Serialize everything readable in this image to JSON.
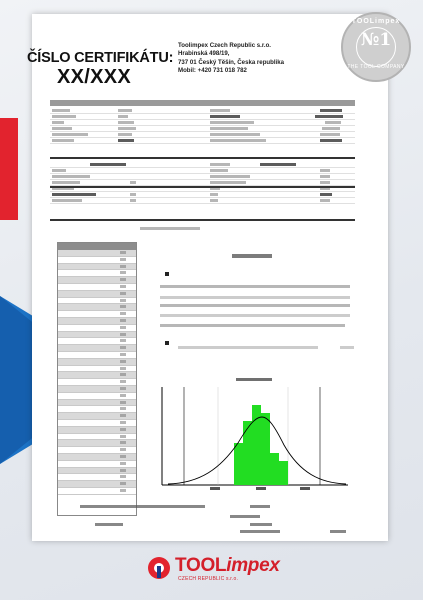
{
  "certificate": {
    "title": "ČÍSLO CERTIFIKÁTU:",
    "number": "XX/XXX"
  },
  "company": {
    "name": "Toolimpex Czech Republic s.r.o.",
    "street": "Hrabinská 498/19,",
    "city": "737 01 Český Těšín, Česka republika",
    "phone": "Mobil: +420 731 018 782"
  },
  "stamp": {
    "top": "TOOLimpex",
    "center": "№1",
    "bottom": "THE TOOL COMPANY"
  },
  "logo": {
    "main": "TOOL",
    "italic": "impex",
    "sub": "CZECH REPUBLIC s.r.o."
  },
  "colors": {
    "red_accent": "#e2232e",
    "blue_arrow": "#1c73c6",
    "histogram_green": "#22dd22"
  }
}
